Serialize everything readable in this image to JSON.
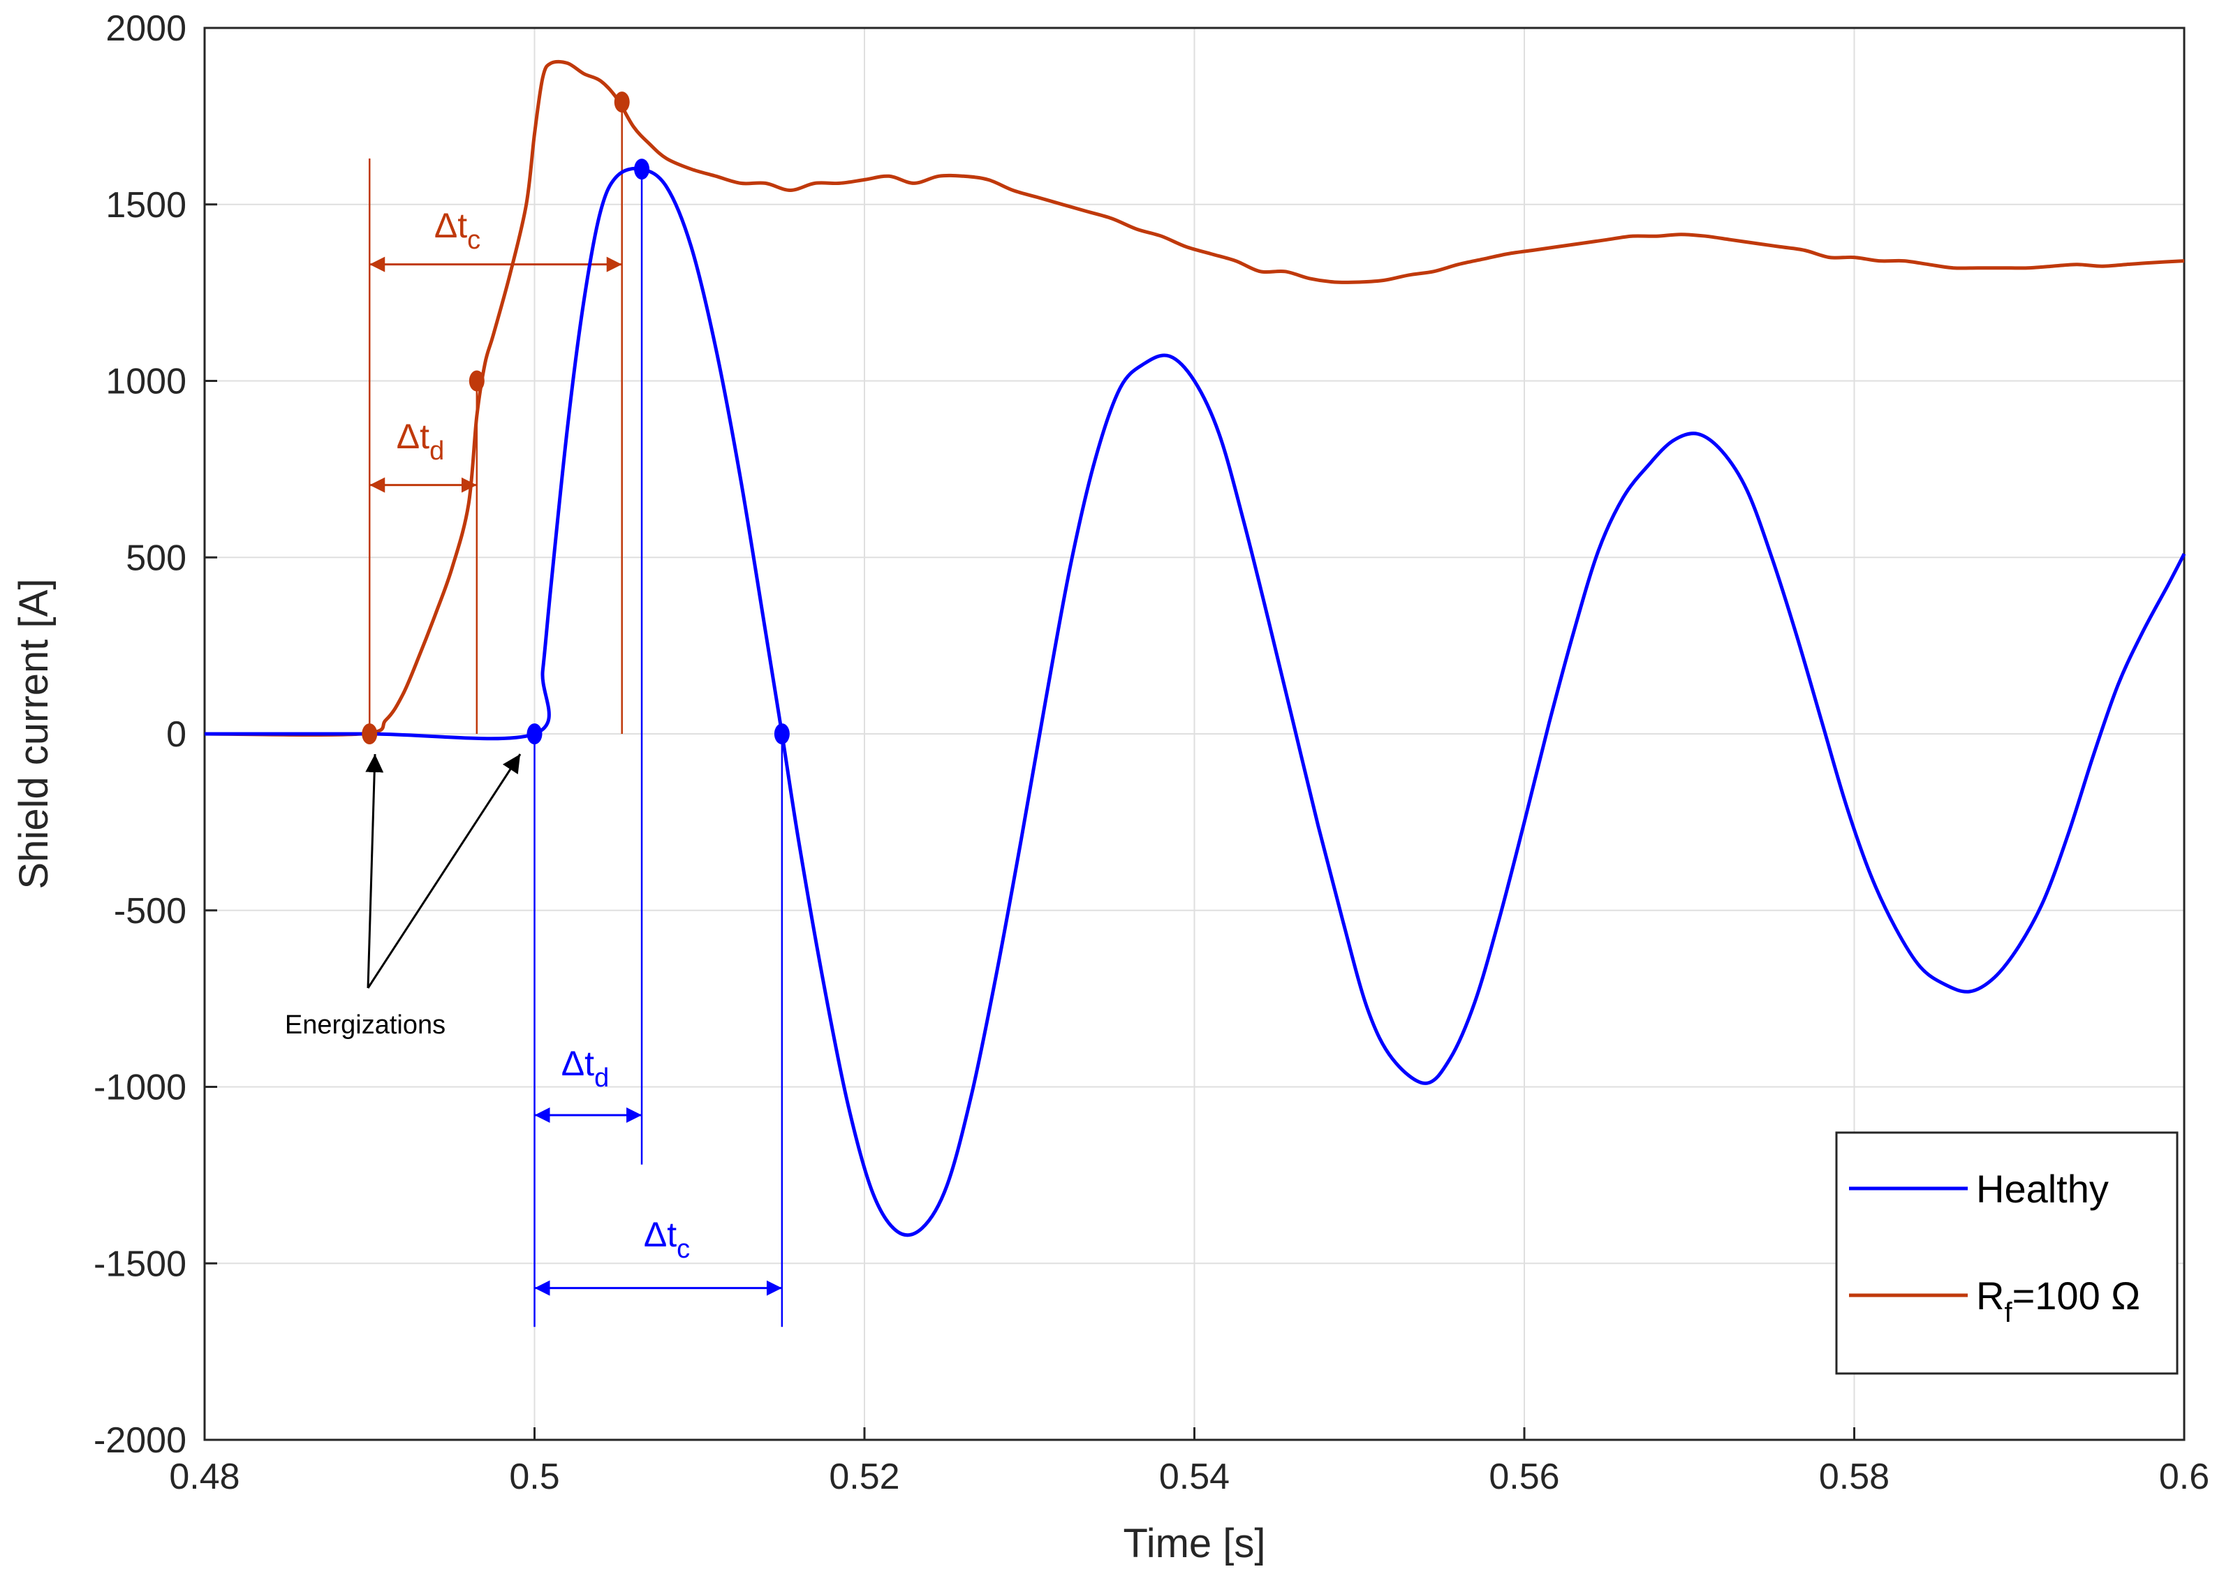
{
  "chart_data": {
    "type": "line",
    "xlabel": "Time [s]",
    "ylabel": "Shield current [A]",
    "xlim": [
      0.48,
      0.6
    ],
    "ylim": [
      -2000,
      2000
    ],
    "xticks": [
      0.48,
      0.5,
      0.52,
      0.54,
      0.56,
      0.58,
      0.6
    ],
    "xtick_labels": [
      "0.48",
      "0.5",
      "0.52",
      "0.54",
      "0.56",
      "0.58",
      "0.6"
    ],
    "yticks": [
      -2000,
      -1500,
      -1000,
      -500,
      0,
      500,
      1000,
      1500,
      2000
    ],
    "ytick_labels": [
      "-2000",
      "-1500",
      "-1000",
      "-500",
      "0",
      "500",
      "1000",
      "1500",
      "2000"
    ],
    "grid": true,
    "legend": {
      "placement": "bottom-right",
      "entries": [
        "Healthy",
        "R_f=100 Ω"
      ]
    },
    "series": [
      {
        "name": "Healthy",
        "color": "#0000ff",
        "points": [
          [
            0.48,
            0
          ],
          [
            0.49,
            0
          ],
          [
            0.5,
            0
          ],
          [
            0.5005,
            180
          ],
          [
            0.501,
            420
          ],
          [
            0.502,
            870
          ],
          [
            0.503,
            1230
          ],
          [
            0.504,
            1480
          ],
          [
            0.505,
            1580
          ],
          [
            0.5065,
            1600
          ],
          [
            0.508,
            1550
          ],
          [
            0.5095,
            1380
          ],
          [
            0.511,
            1090
          ],
          [
            0.5125,
            720
          ],
          [
            0.514,
            290
          ],
          [
            0.515,
            0
          ],
          [
            0.516,
            -300
          ],
          [
            0.5175,
            -700
          ],
          [
            0.519,
            -1050
          ],
          [
            0.5205,
            -1300
          ],
          [
            0.522,
            -1410
          ],
          [
            0.5235,
            -1400
          ],
          [
            0.525,
            -1280
          ],
          [
            0.5265,
            -1020
          ],
          [
            0.528,
            -680
          ],
          [
            0.5295,
            -300
          ],
          [
            0.531,
            100
          ],
          [
            0.5325,
            480
          ],
          [
            0.534,
            780
          ],
          [
            0.5355,
            980
          ],
          [
            0.537,
            1050
          ],
          [
            0.5385,
            1070
          ],
          [
            0.54,
            1000
          ],
          [
            0.5415,
            850
          ],
          [
            0.543,
            600
          ],
          [
            0.5445,
            320
          ],
          [
            0.546,
            30
          ],
          [
            0.5475,
            -260
          ],
          [
            0.549,
            -530
          ],
          [
            0.5505,
            -780
          ],
          [
            0.552,
            -920
          ],
          [
            0.554,
            -990
          ],
          [
            0.5555,
            -920
          ],
          [
            0.557,
            -760
          ],
          [
            0.5585,
            -520
          ],
          [
            0.56,
            -250
          ],
          [
            0.5615,
            30
          ],
          [
            0.563,
            290
          ],
          [
            0.5645,
            520
          ],
          [
            0.566,
            670
          ],
          [
            0.5675,
            760
          ],
          [
            0.569,
            830
          ],
          [
            0.5705,
            850
          ],
          [
            0.572,
            800
          ],
          [
            0.5735,
            690
          ],
          [
            0.575,
            500
          ],
          [
            0.5765,
            280
          ],
          [
            0.578,
            40
          ],
          [
            0.5795,
            -200
          ],
          [
            0.581,
            -400
          ],
          [
            0.5825,
            -550
          ],
          [
            0.584,
            -660
          ],
          [
            0.5855,
            -710
          ],
          [
            0.587,
            -730
          ],
          [
            0.5885,
            -690
          ],
          [
            0.59,
            -600
          ],
          [
            0.5915,
            -470
          ],
          [
            0.593,
            -280
          ],
          [
            0.5945,
            -60
          ],
          [
            0.596,
            140
          ],
          [
            0.5975,
            290
          ],
          [
            0.599,
            420
          ],
          [
            0.6,
            510
          ]
        ]
      },
      {
        "name": "R_f=100 Ω",
        "color": "#c0390b",
        "points": [
          [
            0.48,
            0
          ],
          [
            0.4895,
            0
          ],
          [
            0.491,
            40
          ],
          [
            0.492,
            110
          ],
          [
            0.493,
            220
          ],
          [
            0.494,
            340
          ],
          [
            0.495,
            470
          ],
          [
            0.496,
            650
          ],
          [
            0.4965,
            900
          ],
          [
            0.497,
            1050
          ],
          [
            0.4975,
            1130
          ],
          [
            0.4985,
            1300
          ],
          [
            0.4995,
            1500
          ],
          [
            0.5,
            1700
          ],
          [
            0.5005,
            1860
          ],
          [
            0.501,
            1900
          ],
          [
            0.502,
            1900
          ],
          [
            0.503,
            1870
          ],
          [
            0.504,
            1850
          ],
          [
            0.505,
            1800
          ],
          [
            0.506,
            1720
          ],
          [
            0.507,
            1670
          ],
          [
            0.508,
            1630
          ],
          [
            0.5095,
            1600
          ],
          [
            0.511,
            1580
          ],
          [
            0.5125,
            1560
          ],
          [
            0.514,
            1560
          ],
          [
            0.5155,
            1540
          ],
          [
            0.517,
            1560
          ],
          [
            0.5185,
            1560
          ],
          [
            0.52,
            1570
          ],
          [
            0.5215,
            1580
          ],
          [
            0.523,
            1560
          ],
          [
            0.5245,
            1580
          ],
          [
            0.526,
            1580
          ],
          [
            0.5275,
            1570
          ],
          [
            0.529,
            1540
          ],
          [
            0.5305,
            1520
          ],
          [
            0.532,
            1500
          ],
          [
            0.5335,
            1480
          ],
          [
            0.535,
            1460
          ],
          [
            0.5365,
            1430
          ],
          [
            0.538,
            1410
          ],
          [
            0.5395,
            1380
          ],
          [
            0.541,
            1360
          ],
          [
            0.5425,
            1340
          ],
          [
            0.544,
            1310
          ],
          [
            0.5455,
            1310
          ],
          [
            0.547,
            1290
          ],
          [
            0.5485,
            1280
          ],
          [
            0.55,
            1280
          ],
          [
            0.5515,
            1285
          ],
          [
            0.553,
            1300
          ],
          [
            0.5545,
            1310
          ],
          [
            0.556,
            1330
          ],
          [
            0.5575,
            1345
          ],
          [
            0.559,
            1360
          ],
          [
            0.5605,
            1370
          ],
          [
            0.562,
            1380
          ],
          [
            0.5635,
            1390
          ],
          [
            0.565,
            1400
          ],
          [
            0.5665,
            1410
          ],
          [
            0.568,
            1410
          ],
          [
            0.5695,
            1415
          ],
          [
            0.571,
            1410
          ],
          [
            0.5725,
            1400
          ],
          [
            0.574,
            1390
          ],
          [
            0.5755,
            1380
          ],
          [
            0.577,
            1370
          ],
          [
            0.5785,
            1350
          ],
          [
            0.58,
            1350
          ],
          [
            0.5815,
            1340
          ],
          [
            0.583,
            1340
          ],
          [
            0.5845,
            1330
          ],
          [
            0.586,
            1320
          ],
          [
            0.5875,
            1320
          ],
          [
            0.589,
            1320
          ],
          [
            0.5905,
            1320
          ],
          [
            0.592,
            1325
          ],
          [
            0.5935,
            1330
          ],
          [
            0.595,
            1325
          ],
          [
            0.5965,
            1330
          ],
          [
            0.598,
            1335
          ],
          [
            0.6,
            1340
          ]
        ]
      }
    ],
    "markers": {
      "Healthy": [
        [
          0.5,
          0
        ],
        [
          0.5065,
          1600
        ],
        [
          0.515,
          0
        ]
      ],
      "R_f=100 Ω": [
        [
          0.49,
          0
        ],
        [
          0.4965,
          1000
        ],
        [
          0.5053,
          1790
        ]
      ]
    },
    "annotations": {
      "energizations_label": "Energizations",
      "red_dtc": {
        "base": "Δt",
        "sub": "c",
        "x_from": 0.49,
        "x_to": 0.5053,
        "y": 1330
      },
      "red_dtd": {
        "base": "Δt",
        "sub": "d",
        "x_from": 0.49,
        "x_to": 0.4965,
        "y": 705
      },
      "blue_dtd": {
        "base": "Δt",
        "sub": "d",
        "x_from": 0.5,
        "x_to": 0.5065,
        "y": -1080
      },
      "blue_dtc": {
        "base": "Δt",
        "sub": "c",
        "x_from": 0.5,
        "x_to": 0.515,
        "y": -1570
      }
    },
    "legend_labels": {
      "healthy": "Healthy",
      "faulty_base": "R",
      "faulty_sub": "f",
      "faulty_rest": "=100 Ω"
    }
  }
}
